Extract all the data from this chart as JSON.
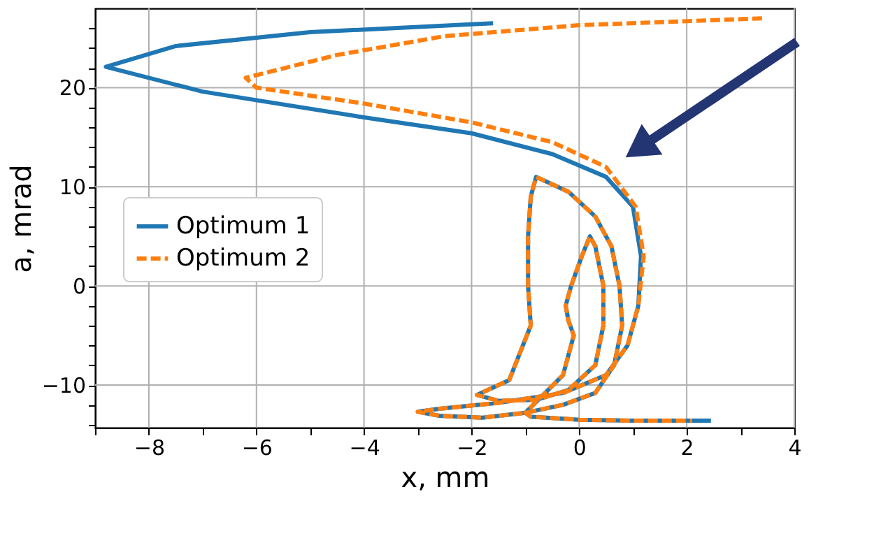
{
  "chart_data": {
    "type": "line",
    "xlabel": "x, mm",
    "ylabel": "a, mrad",
    "xlim": [
      -9,
      4
    ],
    "ylim": [
      -14.3,
      28
    ],
    "xticks": [
      {
        "value": -9,
        "label": null
      },
      -8,
      {
        "value": -7,
        "label": null
      },
      -6,
      {
        "value": -5,
        "label": null
      },
      -4,
      {
        "value": -3,
        "label": null
      },
      -2,
      {
        "value": -1,
        "label": null
      },
      0,
      {
        "value": 1,
        "label": null
      },
      2,
      {
        "value": 3,
        "label": null
      },
      4
    ],
    "yticks": [
      {
        "value": -14,
        "label": null
      },
      {
        "value": -12,
        "label": null
      },
      -10,
      {
        "value": -8,
        "label": null
      },
      {
        "value": -6,
        "label": null
      },
      {
        "value": -4,
        "label": null
      },
      {
        "value": -2,
        "label": null
      },
      0,
      {
        "value": 2,
        "label": null
      },
      {
        "value": 4,
        "label": null
      },
      {
        "value": 6,
        "label": null
      },
      {
        "value": 8,
        "label": null
      },
      10,
      {
        "value": 12,
        "label": null
      },
      {
        "value": 14,
        "label": null
      },
      {
        "value": 16,
        "label": null
      },
      {
        "value": 18,
        "label": null
      },
      20,
      {
        "value": 22,
        "label": null
      },
      {
        "value": 24,
        "label": null
      },
      {
        "value": 26,
        "label": null
      }
    ],
    "grid": true,
    "legend": "left",
    "series": [
      {
        "name": "Optimum 1",
        "color": "#1f77b4",
        "line_style": "solid",
        "x": [
          -1.6,
          -5,
          -7.5,
          -8.8,
          -7,
          -4,
          -2,
          -0.5,
          0.5,
          1,
          1.15,
          1.1,
          0.9,
          0.5,
          -0.3,
          -1.5,
          -2.6,
          -3,
          -2.6,
          -1.8,
          -1,
          -0.3,
          0.3,
          0.65,
          0.8,
          0.75,
          0.6,
          0.3,
          -0.2,
          -0.8,
          -0.9,
          -0.95,
          -0.95,
          -0.9,
          -1.3,
          -1.9,
          -1.5,
          -0.8,
          -0.2,
          0.3,
          0.45,
          0.45,
          0.3,
          0.2,
          0.05,
          -0.15,
          -0.25,
          -0.2,
          -0.1,
          -0.3,
          -1,
          -0.9,
          0,
          1,
          2.45
        ],
        "values": [
          26.5,
          25.6,
          24.2,
          22.1,
          19.6,
          17,
          15.4,
          13.3,
          11,
          8,
          3,
          -2,
          -6,
          -9,
          -10.8,
          -11.8,
          -12.4,
          -12.7,
          -13.1,
          -13.3,
          -12.8,
          -12,
          -10.8,
          -8,
          -4,
          0,
          4,
          7,
          9.5,
          11,
          9,
          5,
          0,
          -4,
          -9.5,
          -11,
          -11.6,
          -11.5,
          -10.5,
          -8,
          -4,
          0,
          4,
          5,
          3,
          0,
          -2,
          -3.5,
          -5,
          -9,
          -12.8,
          -13.2,
          -13.5,
          -13.6,
          -13.6
        ]
      },
      {
        "name": "Optimum 2",
        "color": "#ff7f0e",
        "line_style": "dashed",
        "x": [
          3.4,
          0,
          -2.5,
          -4.5,
          -6.2,
          -6,
          -4,
          -2,
          -0.5,
          0.5,
          1.05,
          1.2,
          1.1,
          0.9,
          0.5,
          -0.3,
          -1.5,
          -2.6,
          -3,
          -2.6,
          -1.8,
          -1,
          -0.3,
          0.3,
          0.65,
          0.8,
          0.75,
          0.6,
          0.3,
          -0.2,
          -0.8,
          -0.9,
          -0.95,
          -0.95,
          -0.9,
          -1.3,
          -1.9,
          -1.5,
          -0.8,
          -0.2,
          0.3,
          0.45,
          0.45,
          0.3,
          0.2,
          0.05,
          -0.15,
          -0.25,
          -0.2,
          -0.1,
          -0.3,
          -1,
          -0.9,
          0,
          1,
          2.1
        ],
        "values": [
          27,
          26.3,
          25.2,
          23.3,
          21,
          20,
          18.4,
          16.5,
          14.5,
          12,
          8,
          3,
          -2,
          -6,
          -9,
          -10.8,
          -11.8,
          -12.4,
          -12.7,
          -13.1,
          -13.3,
          -12.8,
          -12,
          -10.8,
          -8,
          -4,
          0,
          4,
          7,
          9.5,
          11,
          9,
          5,
          0,
          -4,
          -9.5,
          -11,
          -11.6,
          -11.5,
          -10.5,
          -8,
          -4,
          0,
          4,
          5,
          3,
          0,
          -2,
          -3.5,
          -5,
          -9,
          -12.8,
          -13.2,
          -13.5,
          -13.6,
          -13.6
        ]
      }
    ]
  }
}
